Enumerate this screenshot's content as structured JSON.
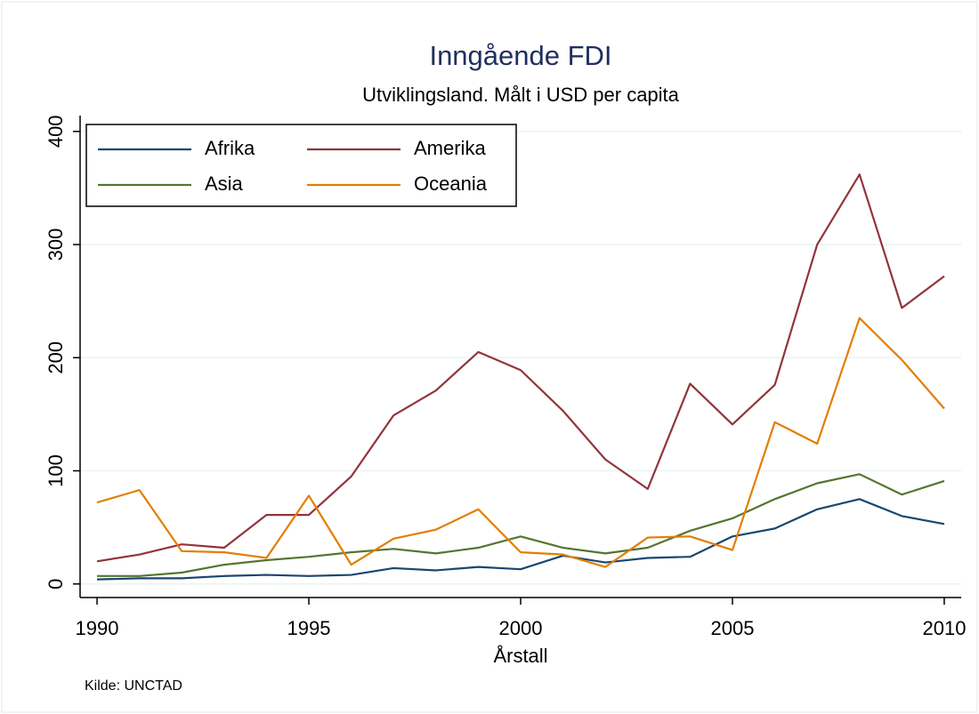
{
  "chart_data": {
    "type": "line",
    "title": "Inngående FDI",
    "subtitle": "Utviklingsland. Målt i USD per capita",
    "x_label": "Årstall",
    "note": "Kilde: UNCTAD",
    "x": [
      1990,
      1991,
      1992,
      1993,
      1994,
      1995,
      1996,
      1997,
      1998,
      1999,
      2000,
      2001,
      2002,
      2003,
      2004,
      2005,
      2006,
      2007,
      2008,
      2009,
      2010
    ],
    "series": [
      {
        "name": "Afrika",
        "color": "#1a476f",
        "values": [
          4,
          5,
          5,
          7,
          8,
          7,
          8,
          14,
          12,
          15,
          13,
          25,
          19,
          23,
          24,
          42,
          49,
          66,
          75,
          60,
          53
        ]
      },
      {
        "name": "Amerika",
        "color": "#90353b",
        "values": [
          20,
          26,
          35,
          32,
          61,
          61,
          95,
          149,
          171,
          205,
          189,
          153,
          110,
          84,
          177,
          141,
          176,
          300,
          362,
          244,
          272
        ]
      },
      {
        "name": "Asia",
        "color": "#55752f",
        "values": [
          7,
          7,
          10,
          17,
          21,
          24,
          28,
          31,
          27,
          32,
          42,
          32,
          27,
          32,
          47,
          58,
          75,
          89,
          97,
          79,
          91
        ]
      },
      {
        "name": "Oceania",
        "color": "#e37e00",
        "values": [
          72,
          83,
          29,
          28,
          23,
          78,
          17,
          40,
          48,
          66,
          28,
          26,
          15,
          41,
          42,
          30,
          143,
          124,
          235,
          198,
          155
        ]
      }
    ],
    "xlim": [
      1989.6,
      2010.4
    ],
    "xticks": [
      1990,
      1995,
      2000,
      2005,
      2010
    ],
    "ylim": [
      -12,
      414
    ],
    "yticks": [
      0,
      100,
      200,
      300,
      400
    ],
    "grid": true,
    "legend": "top-left"
  }
}
